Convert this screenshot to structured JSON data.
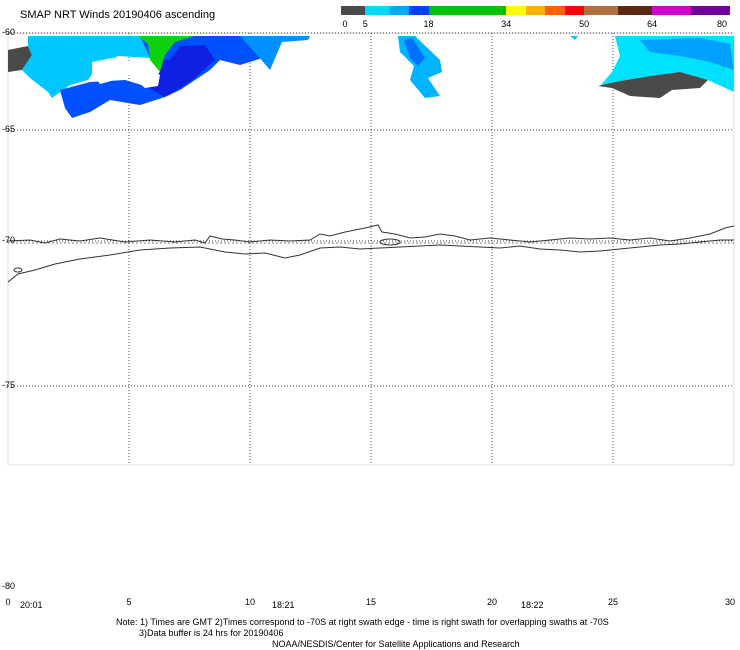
{
  "title": "SMAP NRT Winds 20190406 ascending",
  "legend": {
    "segments": [
      {
        "color": "#4a4a4a",
        "from": 0,
        "to": 5
      },
      {
        "color": "#00d8ff",
        "from": 5,
        "to": 10
      },
      {
        "color": "#00a8ff",
        "from": 10,
        "to": 14
      },
      {
        "color": "#0040ff",
        "from": 14,
        "to": 18
      },
      {
        "color": "#00c000",
        "from": 18,
        "to": 34
      },
      {
        "color": "#ffff00",
        "from": 34,
        "to": 38
      },
      {
        "color": "#ffb000",
        "from": 38,
        "to": 42
      },
      {
        "color": "#ff6000",
        "from": 42,
        "to": 46
      },
      {
        "color": "#ff0000",
        "from": 46,
        "to": 50
      },
      {
        "color": "#b07040",
        "from": 50,
        "to": 57
      },
      {
        "color": "#5a2a10",
        "from": 57,
        "to": 64
      },
      {
        "color": "#d000d0",
        "from": 64,
        "to": 72
      },
      {
        "color": "#7000a0",
        "from": 72,
        "to": 80
      }
    ],
    "ticks": [
      "0",
      "5",
      "18",
      "34",
      "50",
      "64",
      "80"
    ],
    "tick_values": [
      0,
      5,
      18,
      34,
      50,
      64,
      80
    ]
  },
  "lat_labels": [
    "-60",
    "-65",
    "-70",
    "-75",
    "-80"
  ],
  "lat_values": [
    -60,
    -65,
    -70,
    -75,
    -80
  ],
  "lon_labels": [
    "0",
    "5",
    "10",
    "15",
    "20",
    "25",
    "30"
  ],
  "lon_values": [
    0,
    5,
    10,
    15,
    20,
    25,
    30
  ],
  "times": [
    "20:01",
    "18:21",
    "18:22"
  ],
  "notes": {
    "line1": "Note: 1) Times are GMT 2)Times correspond to -70S at right swath edge - time is right swath for overlapping swaths at -70S",
    "line2": "3)Data buffer is 24 hrs for 20190406",
    "line3": "NOAA/NESDIS/Center for Satellite Applications and Research"
  }
}
